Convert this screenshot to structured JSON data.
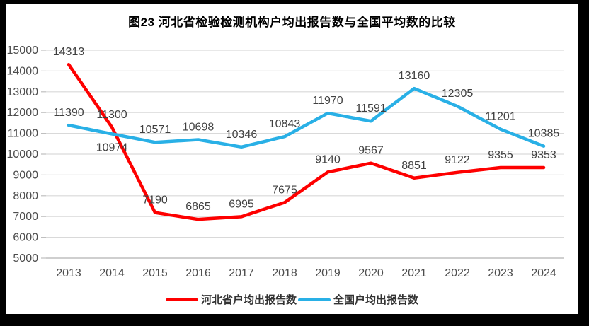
{
  "title": "图23  河北省检验检测机构户均出报告数与全国平均数的比较",
  "chart_data": {
    "type": "line",
    "title": "图23  河北省检验检测机构户均出报告数与全国平均数的比较",
    "categories": [
      "2013",
      "2014",
      "2015",
      "2016",
      "2017",
      "2018",
      "2019",
      "2020",
      "2021",
      "2022",
      "2023",
      "2024"
    ],
    "series": [
      {
        "name": "河北省户均出报告数",
        "color": "#fe0000",
        "values": [
          14313,
          11300,
          7190,
          6865,
          6995,
          7675,
          9140,
          9567,
          8851,
          9122,
          9355,
          9353
        ],
        "labels_below_indices": []
      },
      {
        "name": "全国户均出报告数",
        "color": "#29b0e6",
        "values": [
          11390,
          10974,
          10571,
          10698,
          10346,
          10843,
          11970,
          11591,
          13160,
          12305,
          11201,
          10385
        ],
        "labels_below_indices": [
          1
        ]
      }
    ],
    "ylim": [
      5000,
      15000
    ],
    "ytick_step": 1000,
    "ytick_labels": [
      "5000",
      "6000",
      "7000",
      "8000",
      "9000",
      "10000",
      "11000",
      "12000",
      "13000",
      "14000",
      "15000"
    ],
    "grid": true,
    "legend_position": "bottom",
    "colors": {
      "gridline": "#d9d9d9",
      "axis_line": "#bfbfbf",
      "axis_text": "#4d4d4d",
      "data_label_text": "#404040",
      "frame_border": "#000000",
      "background": "#ffffff"
    }
  }
}
